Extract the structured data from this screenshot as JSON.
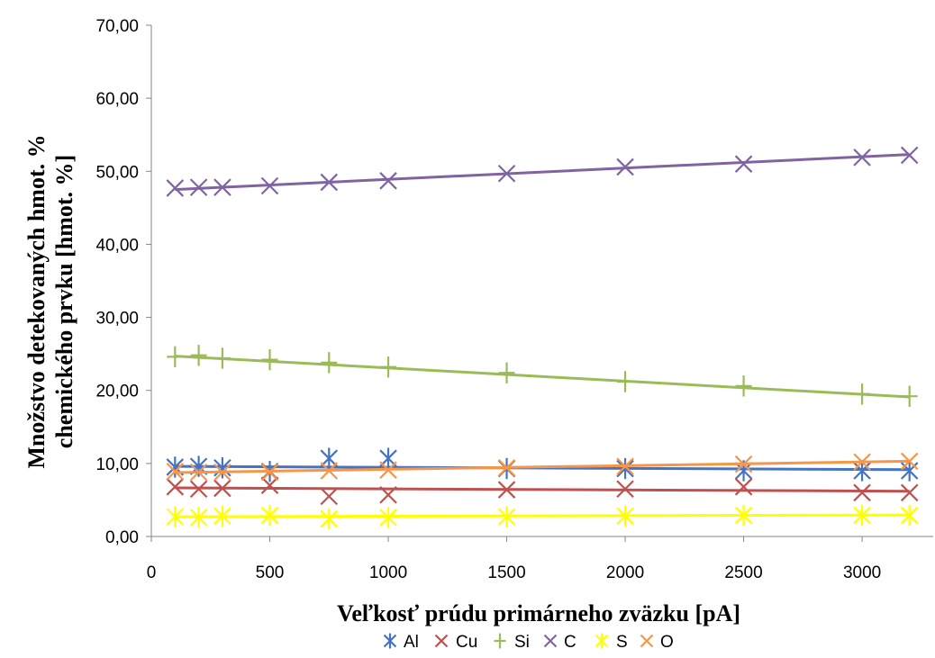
{
  "chart_data": {
    "type": "scatter",
    "title": "",
    "xlabel": "Veľkosť  prúdu primárneho zväzku [pA]",
    "ylabel_lines": [
      "Množstvo detekovaných hmot. %",
      "chemického prvku [hmot. %]"
    ],
    "xlim": [
      0,
      3300
    ],
    "ylim": [
      0,
      70
    ],
    "x_ticks": [
      0,
      500,
      1000,
      1500,
      2000,
      2500,
      3000
    ],
    "y_ticks": [
      0,
      10,
      20,
      30,
      40,
      50,
      60,
      70
    ],
    "y_tick_labels": [
      "0,00",
      "10,00",
      "20,00",
      "30,00",
      "40,00",
      "50,00",
      "60,00",
      "70,00"
    ],
    "grid": false,
    "legend_position": "bottom",
    "x": [
      100,
      200,
      300,
      500,
      750,
      1000,
      1500,
      2000,
      2500,
      3000,
      3200
    ],
    "series": [
      {
        "name": "Al",
        "color": "#4472C4",
        "marker": "asterisk",
        "values": [
          9.5,
          9.6,
          9.4,
          8.9,
          10.7,
          10.7,
          9.3,
          9.3,
          9.0,
          9.0,
          9.0
        ],
        "trend": [
          9.6,
          9.15
        ]
      },
      {
        "name": "Cu",
        "color": "#C0504D",
        "marker": "x",
        "values": [
          6.8,
          6.5,
          6.6,
          7.0,
          5.5,
          5.7,
          6.4,
          6.5,
          6.8,
          6.0,
          6.0
        ],
        "trend": [
          6.65,
          6.2
        ]
      },
      {
        "name": "Si",
        "color": "#9BBB59",
        "marker": "plus",
        "values": [
          24.6,
          24.8,
          24.4,
          24.2,
          23.8,
          23.2,
          22.4,
          21.2,
          20.6,
          19.5,
          19.2
        ],
        "trend": [
          24.7,
          19.1
        ]
      },
      {
        "name": "C",
        "color": "#8064A2",
        "marker": "x",
        "values": [
          47.7,
          47.8,
          47.8,
          48.0,
          48.5,
          48.7,
          49.7,
          50.6,
          51.0,
          51.9,
          52.2
        ],
        "trend": [
          47.5,
          52.3
        ]
      },
      {
        "name": "S",
        "color": "#FFFF00",
        "marker": "asterisk",
        "values": [
          2.7,
          2.6,
          2.8,
          2.9,
          2.4,
          2.6,
          2.7,
          2.8,
          2.9,
          2.9,
          2.9
        ],
        "trend": [
          2.7,
          2.95
        ]
      },
      {
        "name": "O",
        "color": "#F79646",
        "marker": "x",
        "values": [
          8.9,
          8.8,
          8.8,
          8.8,
          9.0,
          9.1,
          9.4,
          9.6,
          9.9,
          10.2,
          10.3
        ],
        "trend": [
          8.75,
          10.3
        ]
      }
    ]
  }
}
